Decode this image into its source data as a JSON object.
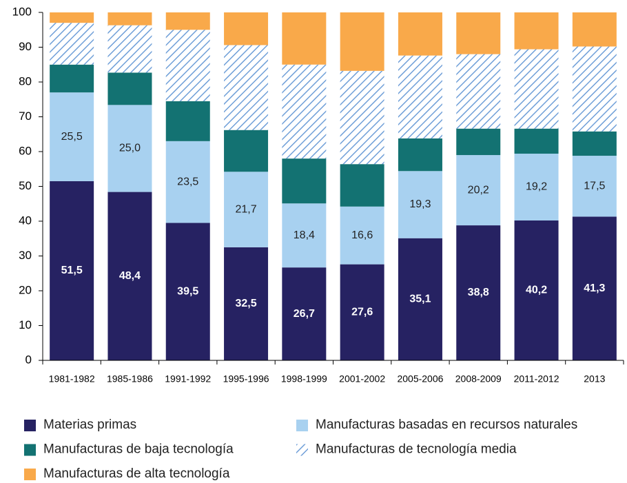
{
  "chart_data": {
    "type": "stacked_bar",
    "categories": [
      "1981-1982",
      "1985-1986",
      "1991-1992",
      "1995-1996",
      "1998-1999",
      "2001-2002",
      "2005-2006",
      "2008-2009",
      "2011-2012",
      "2013"
    ],
    "series": [
      {
        "name": "Materias primas",
        "color": "#262262",
        "values": [
          51.5,
          48.4,
          39.5,
          32.5,
          26.7,
          27.6,
          35.1,
          38.8,
          40.2,
          41.3
        ],
        "value_labels": [
          "51,5",
          "48,4",
          "39,5",
          "32,5",
          "26,7",
          "27,6",
          "35,1",
          "38,8",
          "40,2",
          "41,3"
        ]
      },
      {
        "name": "Manufacturas basadas en recursos naturales",
        "color": "#a8d1f0",
        "values": [
          25.5,
          25.0,
          23.5,
          21.7,
          18.4,
          16.6,
          19.3,
          20.2,
          19.2,
          17.5
        ],
        "value_labels": [
          "25,5",
          "25,0",
          "23,5",
          "21,7",
          "18,4",
          "16,6",
          "19,3",
          "20,2",
          "19,2",
          "17,5"
        ]
      },
      {
        "name": "Manufacturas de baja tecnología",
        "color": "#137272",
        "values": [
          8.0,
          9.3,
          11.5,
          12.0,
          12.9,
          12.2,
          9.4,
          7.6,
          7.2,
          7.0
        ]
      },
      {
        "name": "Manufacturas de tecnología media",
        "color": "#6f9fd8",
        "pattern": "hatch",
        "values": [
          12.0,
          13.6,
          20.5,
          24.4,
          27.0,
          26.8,
          23.8,
          21.4,
          22.8,
          24.4
        ]
      },
      {
        "name": "Manufacturas de alta tecnología",
        "color": "#f9a94a",
        "values": [
          3.0,
          3.7,
          5.0,
          9.4,
          15.0,
          16.8,
          12.4,
          12.0,
          10.6,
          9.8
        ]
      }
    ],
    "ylim": [
      0,
      100
    ],
    "yticks": [
      0,
      10,
      20,
      30,
      40,
      50,
      60,
      70,
      80,
      90,
      100
    ]
  }
}
